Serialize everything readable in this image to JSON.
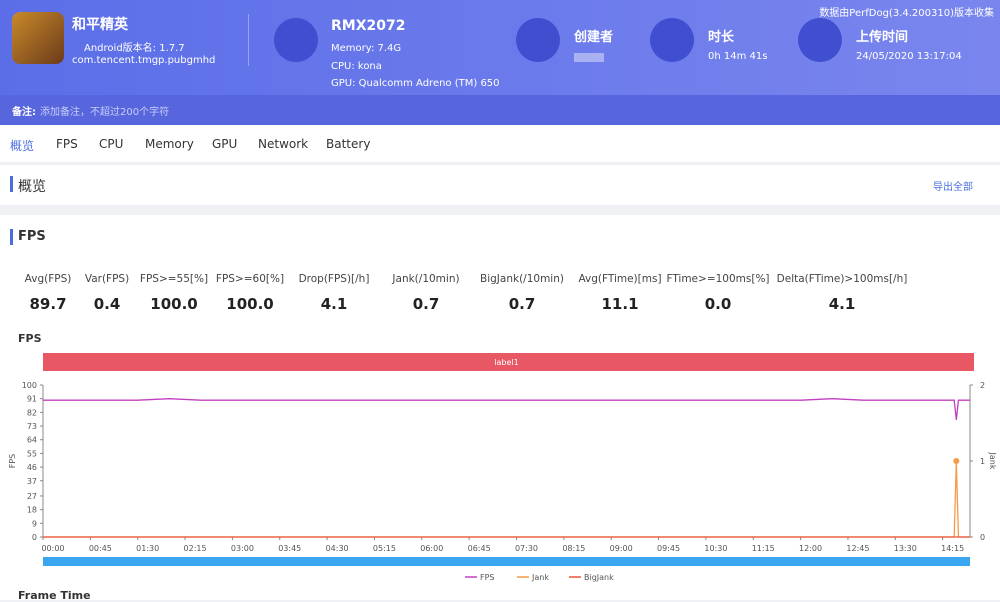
{
  "header": {
    "app_name": "和平精英",
    "android_version": "Android版本名: 1.7.7",
    "package": "com.tencent.tmgp.pubgmhd",
    "source_note": "数据由PerfDog(3.4.200310)版本收集"
  },
  "device": {
    "name": "RMX2072",
    "memory": "Memory: 7.4G",
    "cpu": "CPU: kona",
    "gpu": "GPU: Qualcomm Adreno (TM) 650"
  },
  "creator": {
    "label": "创建者"
  },
  "duration": {
    "label": "时长",
    "value": "0h 14m 41s"
  },
  "upload": {
    "label": "上传时间",
    "value": "24/05/2020 13:17:04"
  },
  "remark": {
    "label": "备注:",
    "placeholder": "添加备注，不超过200个字符"
  },
  "tabs": [
    "概览",
    "FPS",
    "CPU",
    "Memory",
    "GPU",
    "Network",
    "Battery"
  ],
  "overview": {
    "title": "概览",
    "export": "导出全部"
  },
  "fps_section": {
    "title": "FPS",
    "stats": [
      {
        "label": "Avg(FPS)",
        "value": "89.7"
      },
      {
        "label": "Var(FPS)",
        "value": "0.4"
      },
      {
        "label": "FPS>=55[%]",
        "value": "100.0"
      },
      {
        "label": "FPS>=60[%]",
        "value": "100.0"
      },
      {
        "label": "Drop(FPS)[/h]",
        "value": "4.1"
      },
      {
        "label": "Jank(/10min)",
        "value": "0.7"
      },
      {
        "label": "BigJank(/10min)",
        "value": "0.7"
      },
      {
        "label": "Avg(FTime)[ms]",
        "value": "11.1"
      },
      {
        "label": "FTime>=100ms[%]",
        "value": "0.0"
      },
      {
        "label": "Delta(FTime)>100ms[/h]",
        "value": "4.1"
      }
    ]
  },
  "chart_data": {
    "type": "line",
    "title": "FPS",
    "band_label": "label1",
    "y_label": "FPS",
    "y2_label": "Jank",
    "x": [
      0,
      30,
      60,
      90,
      120,
      150,
      180,
      210,
      240,
      270,
      300,
      330,
      360,
      390,
      420,
      450,
      480,
      510,
      540,
      570,
      600,
      630,
      660,
      690,
      720,
      750,
      780,
      810,
      840,
      855,
      866,
      868,
      870,
      881
    ],
    "xlim": [
      0,
      881
    ],
    "xticks": [
      {
        "value": 0,
        "label": "00:00"
      },
      {
        "value": 45,
        "label": "00:45"
      },
      {
        "value": 90,
        "label": "01:30"
      },
      {
        "value": 135,
        "label": "02:15"
      },
      {
        "value": 180,
        "label": "03:00"
      },
      {
        "value": 225,
        "label": "03:45"
      },
      {
        "value": 270,
        "label": "04:30"
      },
      {
        "value": 315,
        "label": "05:15"
      },
      {
        "value": 360,
        "label": "06:00"
      },
      {
        "value": 405,
        "label": "06:45"
      },
      {
        "value": 450,
        "label": "07:30"
      },
      {
        "value": 495,
        "label": "08:15"
      },
      {
        "value": 540,
        "label": "09:00"
      },
      {
        "value": 585,
        "label": "09:45"
      },
      {
        "value": 630,
        "label": "10:30"
      },
      {
        "value": 675,
        "label": "11:15"
      },
      {
        "value": 720,
        "label": "12:00"
      },
      {
        "value": 765,
        "label": "12:45"
      },
      {
        "value": 810,
        "label": "13:30"
      },
      {
        "value": 855,
        "label": "14:15"
      }
    ],
    "ylim": [
      0,
      100
    ],
    "yticks": [
      0,
      9,
      18,
      27,
      37,
      46,
      55,
      64,
      73,
      82,
      91,
      100
    ],
    "y2lim": [
      0,
      2
    ],
    "y2ticks": [
      0,
      1,
      2
    ],
    "series": [
      {
        "name": "FPS",
        "color": "#c23fc0",
        "values": [
          90,
          90,
          90,
          90,
          91,
          90,
          90,
          90,
          90,
          90,
          90,
          90,
          90,
          90,
          90,
          90,
          90,
          90,
          90,
          90,
          90,
          90,
          90,
          90,
          90,
          91,
          90,
          90,
          90,
          90,
          90,
          77,
          90,
          90
        ]
      },
      {
        "name": "Jank",
        "color": "#f59a4a",
        "axis": "y2",
        "values": [
          0,
          0,
          0,
          0,
          0,
          0,
          0,
          0,
          0,
          0,
          0,
          0,
          0,
          0,
          0,
          0,
          0,
          0,
          0,
          0,
          0,
          0,
          0,
          0,
          0,
          0,
          0,
          0,
          0,
          0,
          0,
          1,
          0,
          0
        ]
      },
      {
        "name": "BigJank",
        "color": "#e8553a",
        "axis": "y2",
        "values": [
          0,
          0,
          0,
          0,
          0,
          0,
          0,
          0,
          0,
          0,
          0,
          0,
          0,
          0,
          0,
          0,
          0,
          0,
          0,
          0,
          0,
          0,
          0,
          0,
          0,
          0,
          0,
          0,
          0,
          0,
          0,
          0,
          0,
          0
        ]
      }
    ]
  },
  "footer": {
    "next_title": "Frame Time"
  }
}
